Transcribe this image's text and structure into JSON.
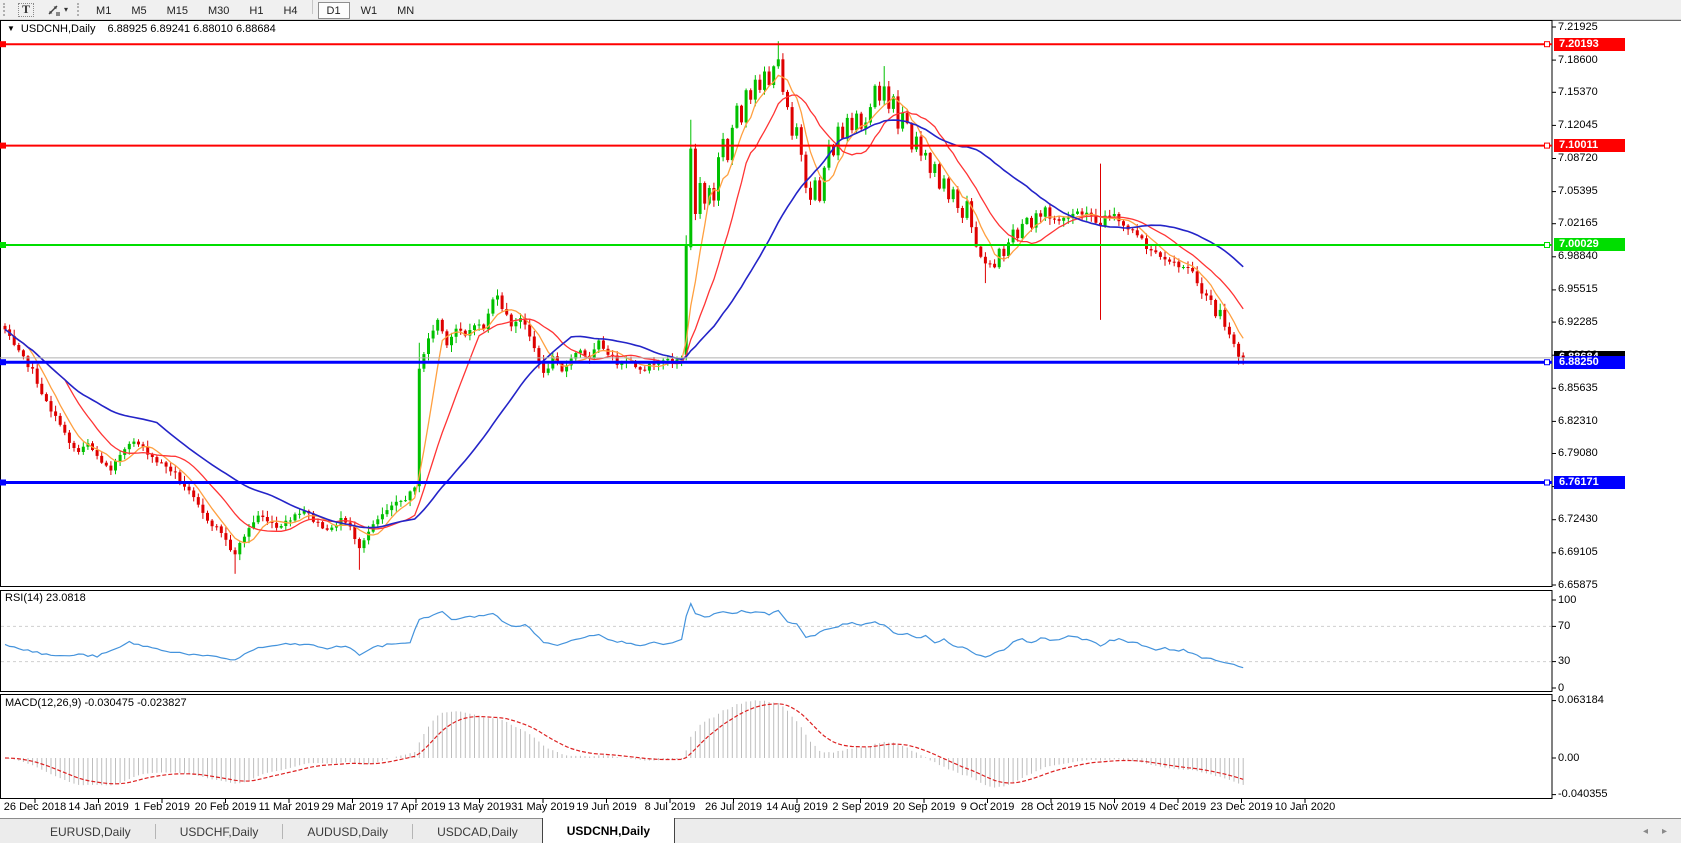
{
  "toolbar": {
    "text_tool": "T",
    "arrow_tool_caret": "▾",
    "timeframes": [
      "M1",
      "M5",
      "M15",
      "M30",
      "H1",
      "H4",
      "D1",
      "W1",
      "MN"
    ],
    "active_timeframe": "D1"
  },
  "chart": {
    "title": {
      "dropdown_icon": "▼",
      "symbol_period": "USDCNH,Daily",
      "ohlc": "6.88925 6.89241 6.88010 6.88684"
    },
    "price_axis_labels": [
      "7.21925",
      "7.18600",
      "7.15370",
      "7.12045",
      "7.08720",
      "7.05395",
      "7.02165",
      "6.98840",
      "6.95515",
      "6.92285",
      "6.88960",
      "6.85635",
      "6.82310",
      "6.79080",
      "6.75755",
      "6.72430",
      "6.69105",
      "6.65875"
    ],
    "h_lines": [
      {
        "price": "7.20193",
        "value": 7.20193,
        "color": "#FF0000",
        "width": 2
      },
      {
        "price": "7.10011",
        "value": 7.10011,
        "color": "#FF0000",
        "width": 2
      },
      {
        "price": "7.00029",
        "value": 7.00029,
        "color": "#00DE00",
        "width": 2
      },
      {
        "price": "6.88250",
        "value": 6.8825,
        "color": "#0000FF",
        "width": 3
      },
      {
        "price": "6.76171",
        "value": 6.76171,
        "color": "#0000FF",
        "width": 3
      }
    ],
    "bid": {
      "price": "6.88684",
      "value": 6.88684
    }
  },
  "panels": {
    "rsi_label": "RSI(14) 23.0818",
    "rsi_axis_labels": [
      "100",
      "70",
      "30",
      "0"
    ],
    "macd_label": "MACD(12,26,9) -0.030475 -0.023827",
    "macd_axis_labels": [
      "0.063184",
      "0.00",
      "-0.040355"
    ]
  },
  "tabs": {
    "items": [
      "EURUSD,Daily",
      "USDCHF,Daily",
      "AUDUSD,Daily",
      "USDCAD,Daily",
      "USDCNH,Daily"
    ],
    "active_index": 4,
    "scroll_left": "◂",
    "scroll_right": "▸"
  },
  "colors": {
    "bull": "#00C000",
    "bear": "#DE0000",
    "ma_fast": "#FFA040",
    "ma_mid": "#FF3535",
    "ma_slow": "#2424C8",
    "rsi": "#4493DC",
    "rsi_level": "#cfcfcf",
    "macd_hist": "#BDBDBD",
    "macd_signal": "#DD2222",
    "bid_line": "#b0b0b0",
    "bid_tag_bg": "#000000"
  },
  "chart_data": {
    "type": "candlestick",
    "symbol": "USDCNH",
    "period": "Daily",
    "y_range": [
      6.65875,
      7.21925
    ],
    "num_bars": 270,
    "dates": [
      "26 Dec 2018",
      "14 Jan 2019",
      "1 Feb 2019",
      "20 Feb 2019",
      "11 Mar 2019",
      "29 Mar 2019",
      "17 Apr 2019",
      "13 May 2019",
      "31 May 2019",
      "19 Jun 2019",
      "8 Jul 2019",
      "26 Jul 2019",
      "14 Aug 2019",
      "2 Sep 2019",
      "20 Sep 2019",
      "9 Oct 2019",
      "28 Oct 2019",
      "15 Nov 2019",
      "4 Dec 2019",
      "23 Dec 2019",
      "10 Jan 2020"
    ],
    "close_keypoints": [
      [
        0,
        6.915
      ],
      [
        2,
        6.898
      ],
      [
        4,
        6.886
      ],
      [
        6,
        6.874
      ],
      [
        8,
        6.852
      ],
      [
        10,
        6.832
      ],
      [
        12,
        6.822
      ],
      [
        14,
        6.8
      ],
      [
        16,
        6.792
      ],
      [
        18,
        6.8
      ],
      [
        20,
        6.788
      ],
      [
        23,
        6.772
      ],
      [
        25,
        6.79
      ],
      [
        27,
        6.803
      ],
      [
        29,
        6.8
      ],
      [
        31,
        6.792
      ],
      [
        33,
        6.783
      ],
      [
        35,
        6.778
      ],
      [
        37,
        6.77
      ],
      [
        39,
        6.758
      ],
      [
        41,
        6.745
      ],
      [
        43,
        6.73
      ],
      [
        45,
        6.72
      ],
      [
        47,
        6.712
      ],
      [
        49,
        6.695
      ],
      [
        50,
        6.688
      ],
      [
        51,
        6.7
      ],
      [
        53,
        6.716
      ],
      [
        55,
        6.728
      ],
      [
        57,
        6.725
      ],
      [
        59,
        6.718
      ],
      [
        61,
        6.722
      ],
      [
        63,
        6.73
      ],
      [
        65,
        6.734
      ],
      [
        67,
        6.724
      ],
      [
        69,
        6.718
      ],
      [
        71,
        6.714
      ],
      [
        73,
        6.726
      ],
      [
        75,
        6.716
      ],
      [
        77,
        6.698
      ],
      [
        79,
        6.712
      ],
      [
        81,
        6.724
      ],
      [
        83,
        6.733
      ],
      [
        85,
        6.74
      ],
      [
        87,
        6.746
      ],
      [
        89,
        6.755
      ],
      [
        90,
        6.878
      ],
      [
        92,
        6.905
      ],
      [
        94,
        6.925
      ],
      [
        96,
        6.902
      ],
      [
        98,
        6.916
      ],
      [
        100,
        6.908
      ],
      [
        102,
        6.922
      ],
      [
        104,
        6.916
      ],
      [
        106,
        6.945
      ],
      [
        107,
        6.952
      ],
      [
        108,
        6.938
      ],
      [
        110,
        6.92
      ],
      [
        112,
        6.928
      ],
      [
        114,
        6.908
      ],
      [
        116,
        6.885
      ],
      [
        117,
        6.87
      ],
      [
        119,
        6.886
      ],
      [
        121,
        6.872
      ],
      [
        123,
        6.888
      ],
      [
        125,
        6.895
      ],
      [
        127,
        6.885
      ],
      [
        129,
        6.902
      ],
      [
        131,
        6.892
      ],
      [
        133,
        6.882
      ],
      [
        135,
        6.886
      ],
      [
        137,
        6.879
      ],
      [
        139,
        6.876
      ],
      [
        141,
        6.882
      ],
      [
        143,
        6.886
      ],
      [
        145,
        6.881
      ],
      [
        147,
        6.888
      ],
      [
        148,
        6.998
      ],
      [
        149,
        7.098
      ],
      [
        150,
        7.032
      ],
      [
        151,
        7.062
      ],
      [
        152,
        7.042
      ],
      [
        153,
        7.058
      ],
      [
        154,
        7.046
      ],
      [
        155,
        7.088
      ],
      [
        156,
        7.108
      ],
      [
        157,
        7.086
      ],
      [
        158,
        7.118
      ],
      [
        159,
        7.138
      ],
      [
        160,
        7.124
      ],
      [
        161,
        7.158
      ],
      [
        162,
        7.148
      ],
      [
        163,
        7.168
      ],
      [
        164,
        7.154
      ],
      [
        165,
        7.174
      ],
      [
        166,
        7.16
      ],
      [
        167,
        7.182
      ],
      [
        168,
        7.188
      ],
      [
        169,
        7.152
      ],
      [
        170,
        7.138
      ],
      [
        171,
        7.108
      ],
      [
        172,
        7.118
      ],
      [
        173,
        7.092
      ],
      [
        174,
        7.06
      ],
      [
        175,
        7.048
      ],
      [
        176,
        7.064
      ],
      [
        177,
        7.044
      ],
      [
        178,
        7.078
      ],
      [
        179,
        7.098
      ],
      [
        180,
        7.092
      ],
      [
        181,
        7.118
      ],
      [
        182,
        7.108
      ],
      [
        183,
        7.128
      ],
      [
        184,
        7.118
      ],
      [
        185,
        7.134
      ],
      [
        186,
        7.118
      ],
      [
        187,
        7.124
      ],
      [
        188,
        7.138
      ],
      [
        189,
        7.158
      ],
      [
        190,
        7.144
      ],
      [
        191,
        7.162
      ],
      [
        192,
        7.138
      ],
      [
        193,
        7.148
      ],
      [
        194,
        7.118
      ],
      [
        195,
        7.132
      ],
      [
        196,
        7.122
      ],
      [
        197,
        7.098
      ],
      [
        198,
        7.108
      ],
      [
        199,
        7.088
      ],
      [
        200,
        7.094
      ],
      [
        201,
        7.072
      ],
      [
        202,
        7.082
      ],
      [
        203,
        7.058
      ],
      [
        204,
        7.068
      ],
      [
        205,
        7.048
      ],
      [
        206,
        7.058
      ],
      [
        207,
        7.038
      ],
      [
        208,
        7.028
      ],
      [
        209,
        7.042
      ],
      [
        210,
        7.018
      ],
      [
        211,
        6.998
      ],
      [
        213,
        6.982
      ],
      [
        215,
        6.978
      ],
      [
        216,
        6.998
      ],
      [
        217,
        6.988
      ],
      [
        218,
        7.002
      ],
      [
        219,
        7.018
      ],
      [
        220,
        7.008
      ],
      [
        221,
        7.022
      ],
      [
        222,
        7.028
      ],
      [
        223,
        7.018
      ],
      [
        224,
        7.032
      ],
      [
        225,
        7.028
      ],
      [
        226,
        7.038
      ],
      [
        227,
        7.028
      ],
      [
        229,
        7.024
      ],
      [
        231,
        7.03
      ],
      [
        233,
        7.034
      ],
      [
        235,
        7.032
      ],
      [
        237,
        7.024
      ],
      [
        238,
        7.018
      ],
      [
        239,
        7.028
      ],
      [
        241,
        7.032
      ],
      [
        243,
        7.02
      ],
      [
        245,
        7.014
      ],
      [
        247,
        7.008
      ],
      [
        248,
        6.998
      ],
      [
        250,
        6.993
      ],
      [
        252,
        6.988
      ],
      [
        254,
        6.982
      ],
      [
        256,
        6.978
      ],
      [
        258,
        6.972
      ],
      [
        260,
        6.954
      ],
      [
        262,
        6.944
      ],
      [
        263,
        6.93
      ],
      [
        264,
        6.934
      ],
      [
        265,
        6.92
      ],
      [
        266,
        6.912
      ],
      [
        267,
        6.9
      ],
      [
        268,
        6.888
      ],
      [
        269,
        6.88684
      ]
    ],
    "overrides": {
      "50": {
        "l": 6.67
      },
      "77": {
        "l": 6.674
      },
      "90": {
        "o": 6.758,
        "h": 6.902,
        "l": 6.752
      },
      "148": {
        "o": 6.89,
        "h": 7.01
      },
      "149": {
        "o": 6.998,
        "h": 7.126
      },
      "168": {
        "h": 7.205
      },
      "191": {
        "h": 7.18
      },
      "213": {
        "l": 6.962
      },
      "238": {
        "h": 7.082,
        "l": 6.925
      },
      "268": {
        "o": 6.901,
        "l": 6.8802,
        "c": 6.888
      },
      "269": {
        "o": 6.88925,
        "h": 6.89241,
        "l": 6.8801,
        "c": 6.88684
      }
    },
    "moving_averages": [
      {
        "name": "fast",
        "window": 6,
        "color": "#FFA040"
      },
      {
        "name": "mid",
        "window": 14,
        "color": "#FF3535"
      },
      {
        "name": "slow",
        "window": 34,
        "color": "#2424C8"
      }
    ],
    "rsi": {
      "period": 14,
      "current": 23.0818,
      "range": [
        0,
        100
      ],
      "levels": [
        70,
        30
      ],
      "keypoints": [
        [
          0,
          50
        ],
        [
          4,
          44
        ],
        [
          8,
          39
        ],
        [
          12,
          36
        ],
        [
          16,
          38
        ],
        [
          20,
          36
        ],
        [
          24,
          44
        ],
        [
          27,
          52
        ],
        [
          30,
          48
        ],
        [
          34,
          43
        ],
        [
          38,
          40
        ],
        [
          42,
          37
        ],
        [
          46,
          35
        ],
        [
          50,
          32
        ],
        [
          54,
          44
        ],
        [
          58,
          48
        ],
        [
          62,
          50
        ],
        [
          66,
          49
        ],
        [
          70,
          45
        ],
        [
          74,
          48
        ],
        [
          77,
          38
        ],
        [
          80,
          46
        ],
        [
          84,
          50
        ],
        [
          88,
          52
        ],
        [
          90,
          78
        ],
        [
          93,
          83
        ],
        [
          95,
          86
        ],
        [
          97,
          78
        ],
        [
          100,
          80
        ],
        [
          103,
          82
        ],
        [
          106,
          85
        ],
        [
          108,
          76
        ],
        [
          110,
          70
        ],
        [
          113,
          72
        ],
        [
          116,
          58
        ],
        [
          117,
          52
        ],
        [
          120,
          48
        ],
        [
          123,
          55
        ],
        [
          126,
          58
        ],
        [
          129,
          62
        ],
        [
          132,
          53
        ],
        [
          135,
          52
        ],
        [
          138,
          49
        ],
        [
          141,
          51
        ],
        [
          144,
          50
        ],
        [
          147,
          54
        ],
        [
          148,
          82
        ],
        [
          149,
          96
        ],
        [
          150,
          84
        ],
        [
          152,
          80
        ],
        [
          154,
          84
        ],
        [
          156,
          86
        ],
        [
          158,
          84
        ],
        [
          160,
          87
        ],
        [
          162,
          85
        ],
        [
          164,
          86
        ],
        [
          166,
          84
        ],
        [
          168,
          89
        ],
        [
          170,
          74
        ],
        [
          172,
          72
        ],
        [
          174,
          58
        ],
        [
          176,
          60
        ],
        [
          178,
          66
        ],
        [
          180,
          68
        ],
        [
          182,
          72
        ],
        [
          184,
          74
        ],
        [
          186,
          71
        ],
        [
          188,
          75
        ],
        [
          190,
          73
        ],
        [
          192,
          68
        ],
        [
          194,
          60
        ],
        [
          196,
          63
        ],
        [
          198,
          56
        ],
        [
          200,
          59
        ],
        [
          202,
          52
        ],
        [
          204,
          55
        ],
        [
          206,
          49
        ],
        [
          208,
          46
        ],
        [
          210,
          41
        ],
        [
          213,
          35
        ],
        [
          215,
          40
        ],
        [
          217,
          44
        ],
        [
          219,
          52
        ],
        [
          221,
          55
        ],
        [
          223,
          52
        ],
        [
          225,
          57
        ],
        [
          227,
          54
        ],
        [
          229,
          56
        ],
        [
          231,
          58
        ],
        [
          233,
          57
        ],
        [
          235,
          55
        ],
        [
          237,
          52
        ],
        [
          238,
          48
        ],
        [
          240,
          54
        ],
        [
          242,
          56
        ],
        [
          244,
          52
        ],
        [
          246,
          51
        ],
        [
          248,
          46
        ],
        [
          250,
          43
        ],
        [
          252,
          46
        ],
        [
          254,
          42
        ],
        [
          256,
          43
        ],
        [
          258,
          40
        ],
        [
          260,
          35
        ],
        [
          262,
          33
        ],
        [
          264,
          31
        ],
        [
          266,
          28
        ],
        [
          268,
          25
        ],
        [
          269,
          23
        ]
      ]
    },
    "macd": {
      "fast": 12,
      "slow": 26,
      "signal": 9,
      "current_macd": -0.030475,
      "current_signal": -0.023827,
      "range": [
        -0.040355,
        0.063184
      ]
    }
  }
}
